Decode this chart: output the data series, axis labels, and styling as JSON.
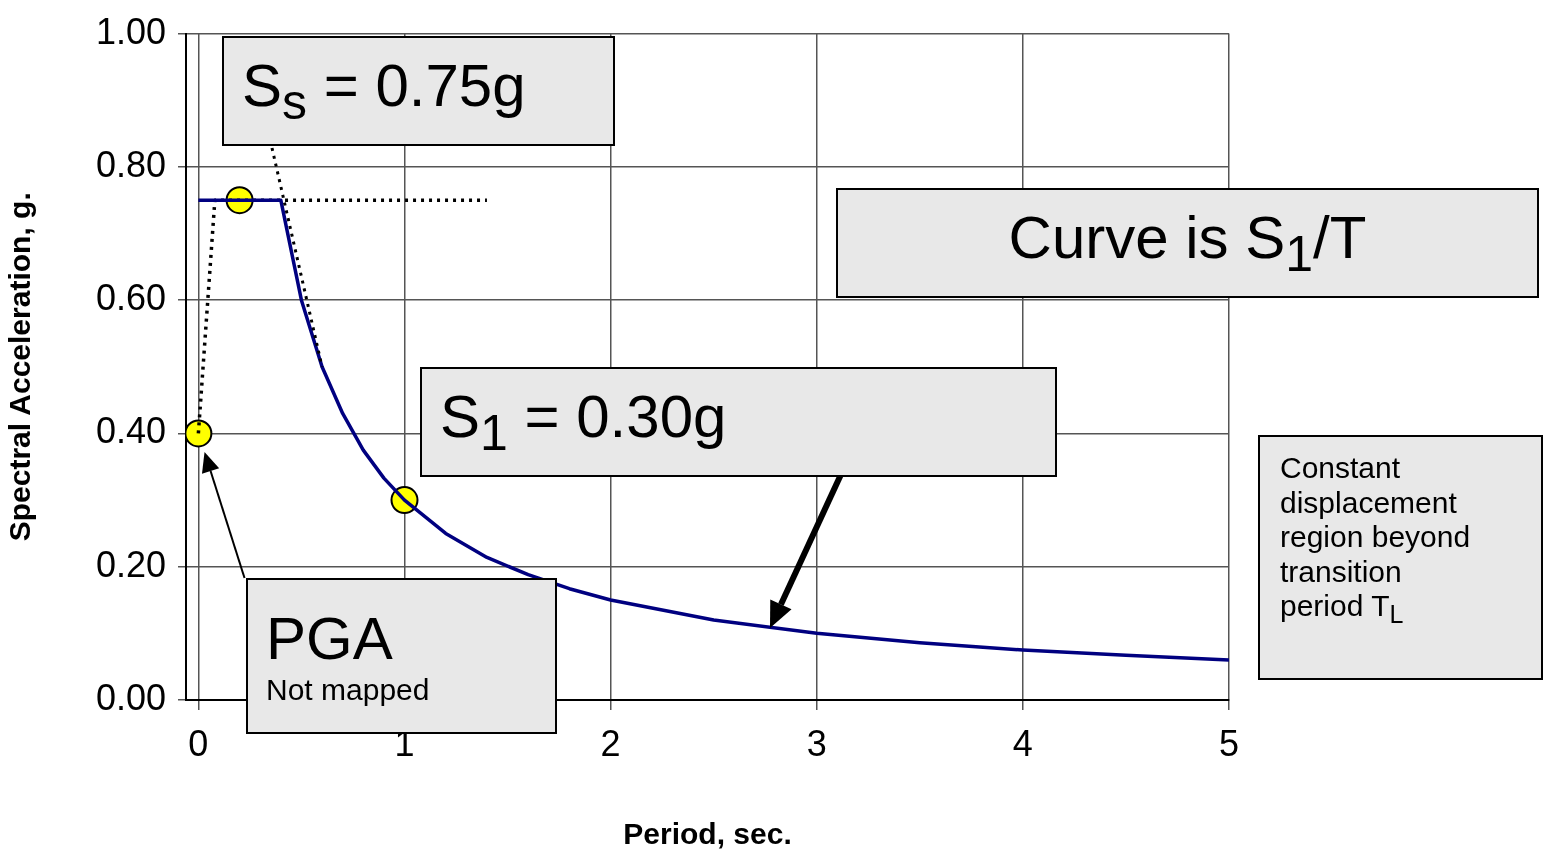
{
  "chart_data": {
    "type": "line",
    "xlabel": "Period, sec.",
    "ylabel": "Spectral Acceleration, g.",
    "xlim": [
      -0.06,
      5
    ],
    "xticks": [
      0,
      1,
      2,
      3,
      4,
      5
    ],
    "ylim": [
      0,
      1
    ],
    "yticks": [
      {
        "value": 0,
        "label": "0.00"
      },
      {
        "value": 0.2,
        "label": "0.20"
      },
      {
        "value": 0.4,
        "label": "0.40"
      },
      {
        "value": 0.6,
        "label": "0.60"
      },
      {
        "value": 0.8,
        "label": "0.80"
      },
      {
        "value": 1,
        "label": "1.00"
      }
    ],
    "grid": true,
    "series": [
      {
        "type": "line",
        "color": "#000080",
        "marker": "none",
        "line_style": "solid",
        "x": [
          0,
          0.4,
          0.5,
          0.6,
          0.7,
          0.8,
          0.9,
          1.0,
          1.2,
          1.4,
          1.6,
          1.8,
          2.0,
          2.5,
          3.0,
          3.5,
          4.0,
          4.5,
          5.0
        ],
        "values": [
          0.75,
          0.75,
          0.6,
          0.5,
          0.43,
          0.375,
          0.333,
          0.3,
          0.25,
          0.214,
          0.188,
          0.167,
          0.15,
          0.12,
          0.1,
          0.086,
          0.075,
          0.067,
          0.06
        ]
      },
      {
        "type": "line",
        "color": "#000000",
        "marker": "none",
        "line_style": "dotted",
        "x": [
          0,
          0.08,
          1.4
        ],
        "values": [
          0.4,
          0.75,
          0.75
        ]
      },
      {
        "type": "scatter",
        "color": "#ffff00",
        "marker": "circle",
        "x": [
          0,
          0.2,
          1.0
        ],
        "values": [
          0.4,
          0.75,
          0.3
        ]
      }
    ],
    "annotations": [
      {
        "text": "S$_{s}$ = 0.75g",
        "x": 0.6,
        "y": 0.5
      },
      "Curve is S$_{1}$/T",
      "S$_{1}$ = 0.30g",
      "PGA",
      "Not mapped",
      "Constant displacement region beyond transition period T$_{L}$"
    ]
  }
}
